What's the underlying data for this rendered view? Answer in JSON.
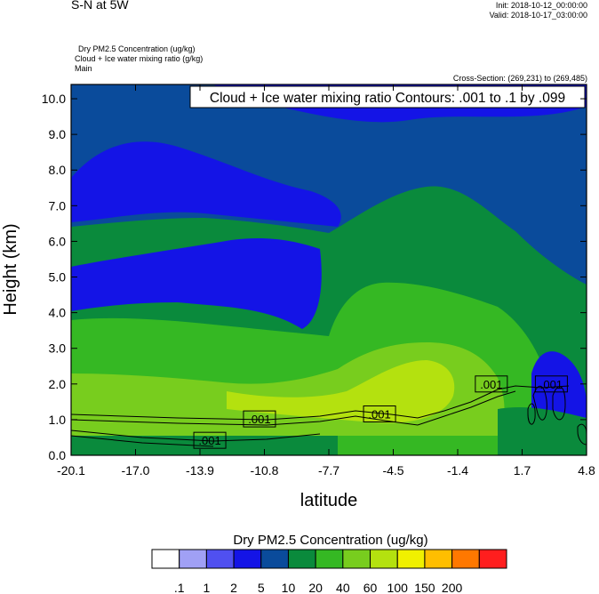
{
  "header": {
    "left_title": "S-N at 5W",
    "init": "Init: 2018-10-12_00:00:00",
    "valid": "Valid: 2018-10-17_03:00:00",
    "field_1": "Dry PM2.5 Concentration   (ug/kg)",
    "field_2": "Cloud + Ice water mixing ratio   (g/kg)",
    "field_3": "Main",
    "cross_section": "Cross-Section: (269,231) to (269,485)"
  },
  "chart_data": {
    "type": "heatmap",
    "contour_title": "Cloud + Ice water mixing ratio Contours: .001 to .1 by .099",
    "xlabel": "latitude",
    "ylabel": "Height (km)",
    "xlim": [
      -20.1,
      4.8
    ],
    "ylim": [
      0,
      10.4
    ],
    "x_ticks": [
      "-20.1",
      "-17.0",
      "-13.9",
      "-10.8",
      "-7.7",
      "-4.5",
      "-1.4",
      "1.7",
      "4.8"
    ],
    "y_ticks": [
      "0.0",
      "1.0",
      "2.0",
      "3.0",
      "4.0",
      "5.0",
      "6.0",
      "7.0",
      "8.0",
      "9.0",
      "10.0"
    ],
    "contour_labels": [
      ".001",
      ".001",
      ".001",
      ".001",
      ".001"
    ],
    "colorbar": {
      "title": "Dry PM2.5 Concentration  (ug/kg)",
      "labels": [
        ".1",
        "1",
        "2",
        "5",
        "10",
        "20",
        "40",
        "60",
        "100",
        "150",
        "200"
      ],
      "colors": [
        "#ffffff",
        "#a0a0f5",
        "#5050f0",
        "#1414e6",
        "#0a4b9b",
        "#0a8a3c",
        "#35b823",
        "#78cd1e",
        "#b4e10f",
        "#f0f000",
        "#ffbe00",
        "#ff7800",
        "#ff1e1e"
      ]
    }
  }
}
